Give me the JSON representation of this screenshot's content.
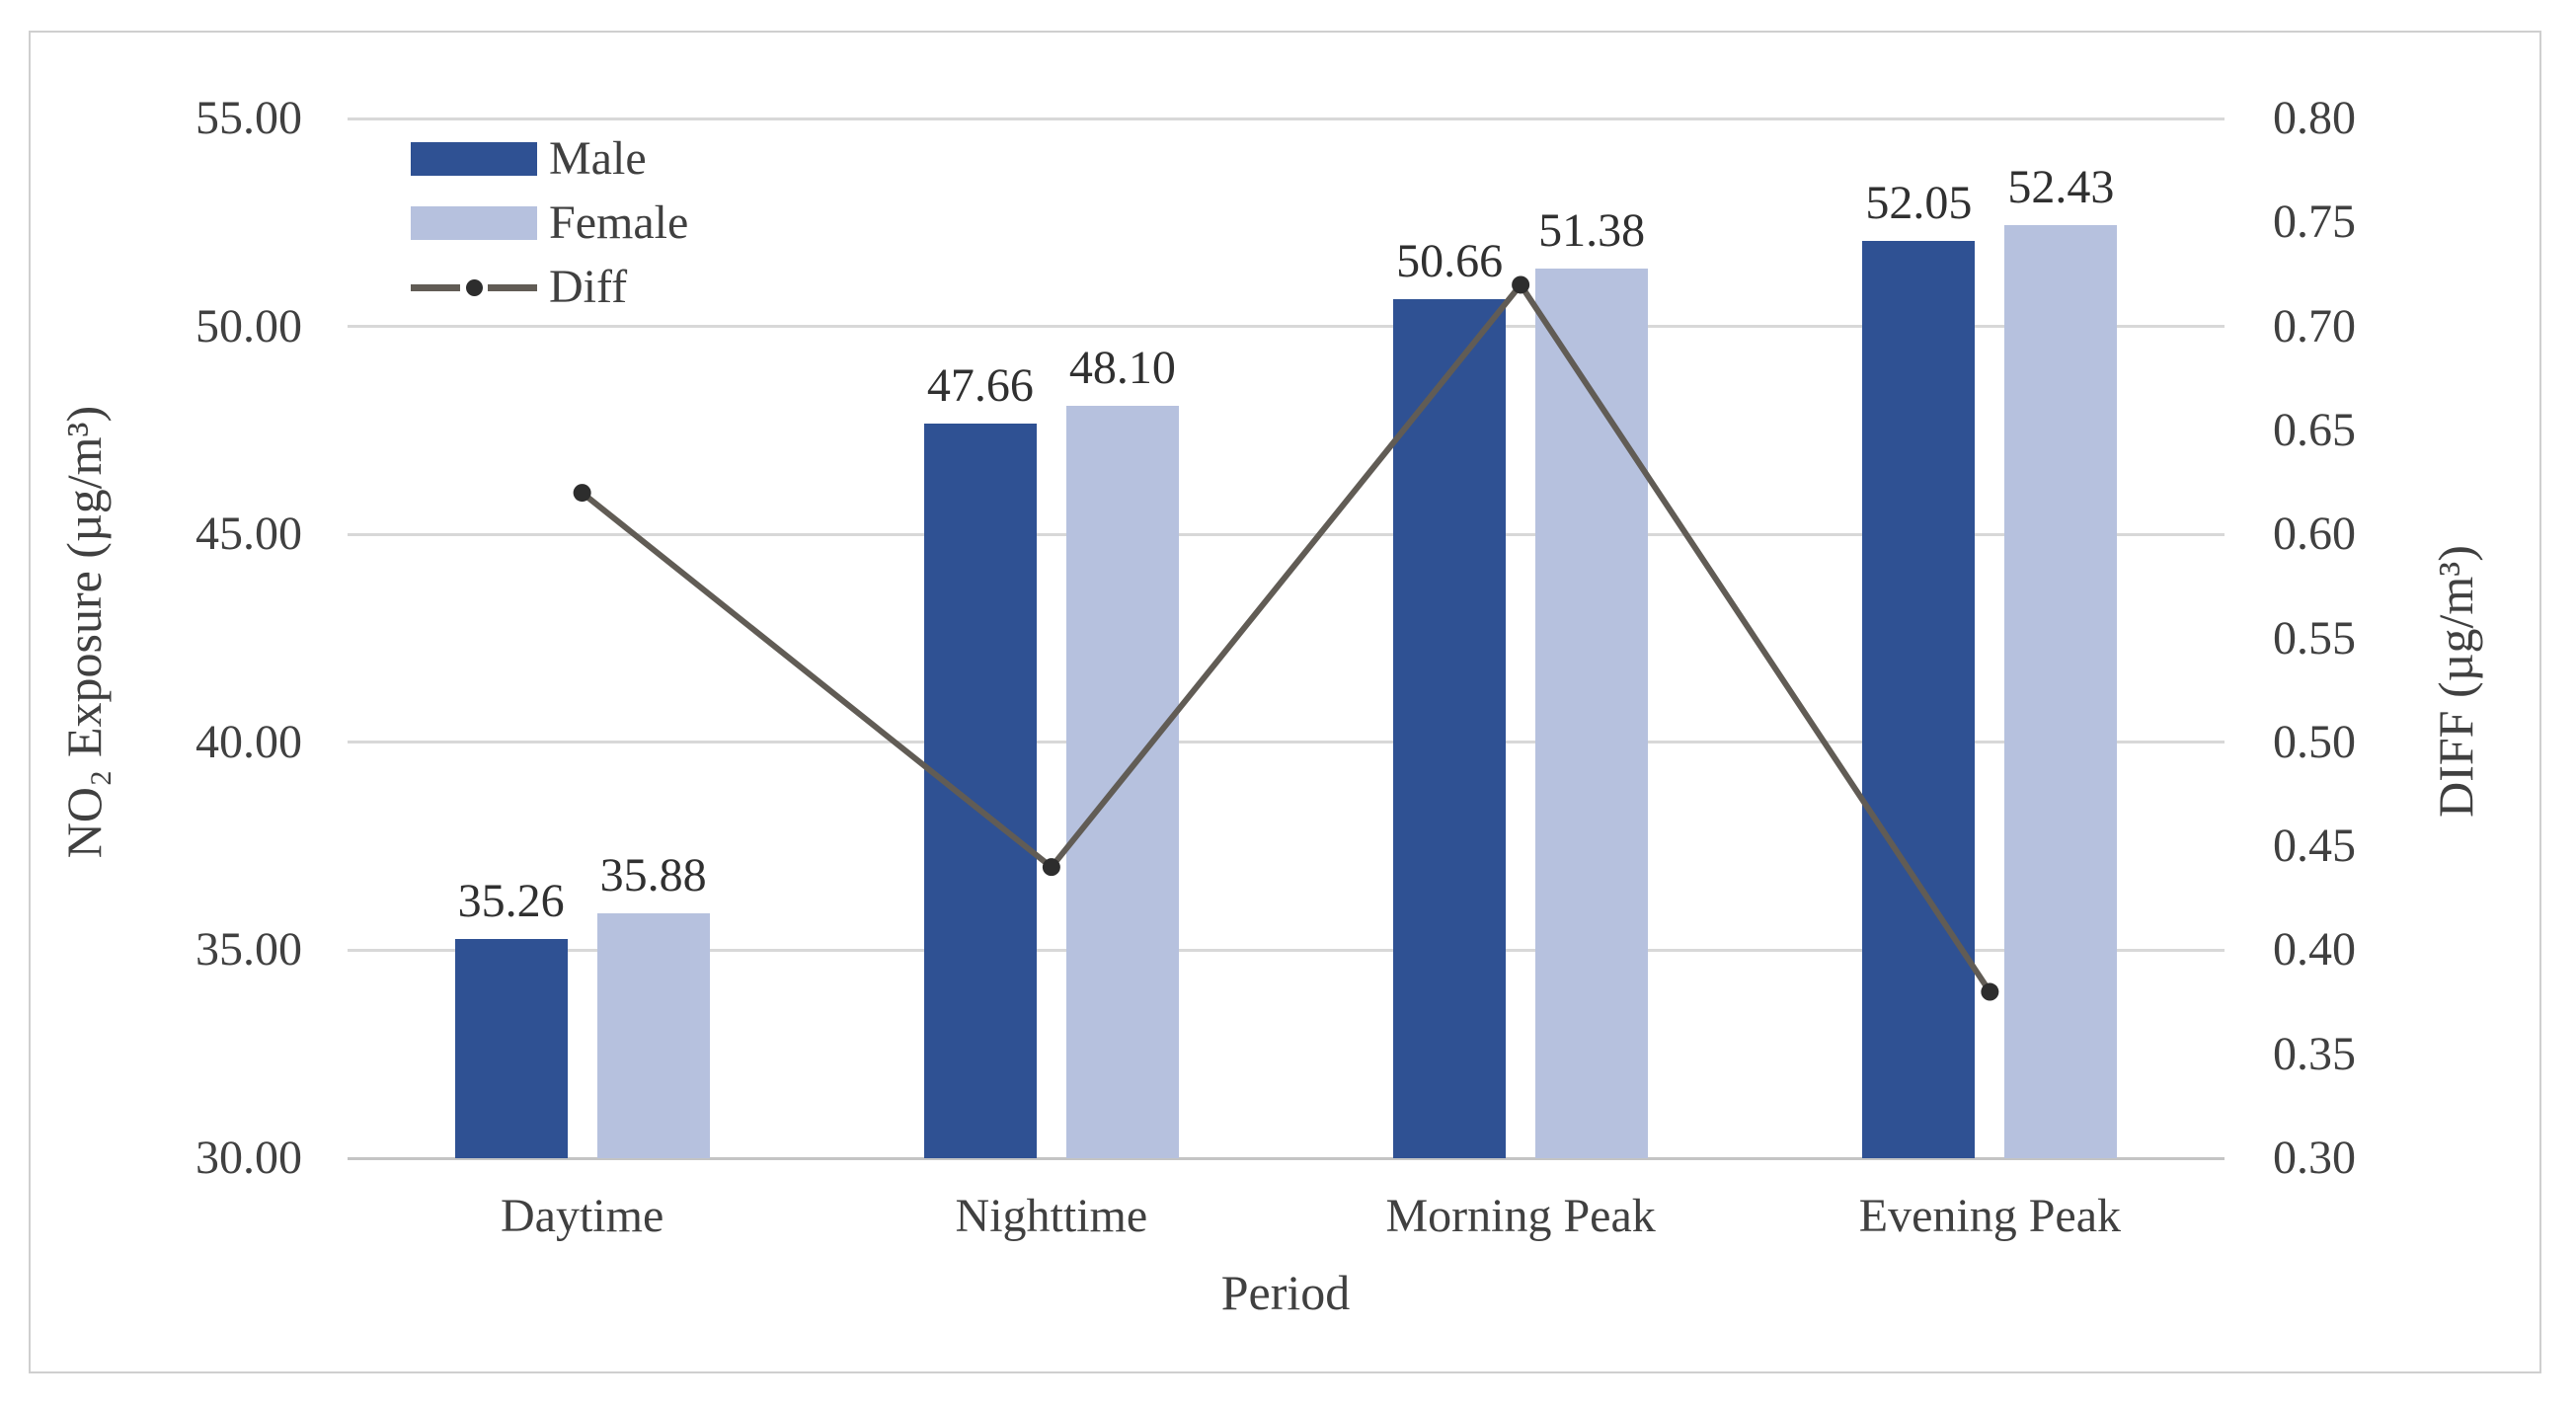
{
  "figure": {
    "border_color": "#cfcfcf",
    "background": "#ffffff",
    "text_color": "#404040"
  },
  "chart_data": {
    "type": "bar+line",
    "categories": [
      "Daytime",
      "Nighttime",
      "Morning Peak",
      "Evening Peak"
    ],
    "series": [
      {
        "name": "Male",
        "type": "bar",
        "axis": "left",
        "color": "#2f5193",
        "values": [
          35.26,
          47.66,
          50.66,
          52.05
        ],
        "labels": [
          "35.26",
          "47.66",
          "50.66",
          "52.05"
        ]
      },
      {
        "name": "Female",
        "type": "bar",
        "axis": "left",
        "color": "#b6c1de",
        "values": [
          35.88,
          48.1,
          51.38,
          52.43
        ],
        "labels": [
          "35.88",
          "48.10",
          "51.38",
          "52.43"
        ]
      },
      {
        "name": "Diff",
        "type": "line",
        "axis": "right",
        "color": "#615c55",
        "marker_color": "#2d2d2d",
        "values": [
          0.62,
          0.44,
          0.72,
          0.38
        ]
      }
    ],
    "left_axis": {
      "title": "NO₂ Exposure (µg/m³)",
      "min": 30,
      "max": 55,
      "tick_labels": [
        "55.00",
        "50.00",
        "45.00",
        "40.00",
        "35.00",
        "30.00"
      ]
    },
    "right_axis": {
      "title": "DIFF (µg/m³)",
      "min": 0.3,
      "max": 0.8,
      "tick_labels": [
        "0.80",
        "0.75",
        "0.70",
        "0.65",
        "0.60",
        "0.55",
        "0.50",
        "0.45",
        "0.40",
        "0.35",
        "0.30"
      ]
    },
    "x_axis": {
      "title": "Period"
    },
    "legend": {
      "entries": [
        "Male",
        "Female",
        "Diff"
      ],
      "position": "top-left-inside"
    },
    "grid": {
      "horizontal": true,
      "color": "#d8d8d8",
      "axis_line_color": "#c4c4c4"
    }
  }
}
